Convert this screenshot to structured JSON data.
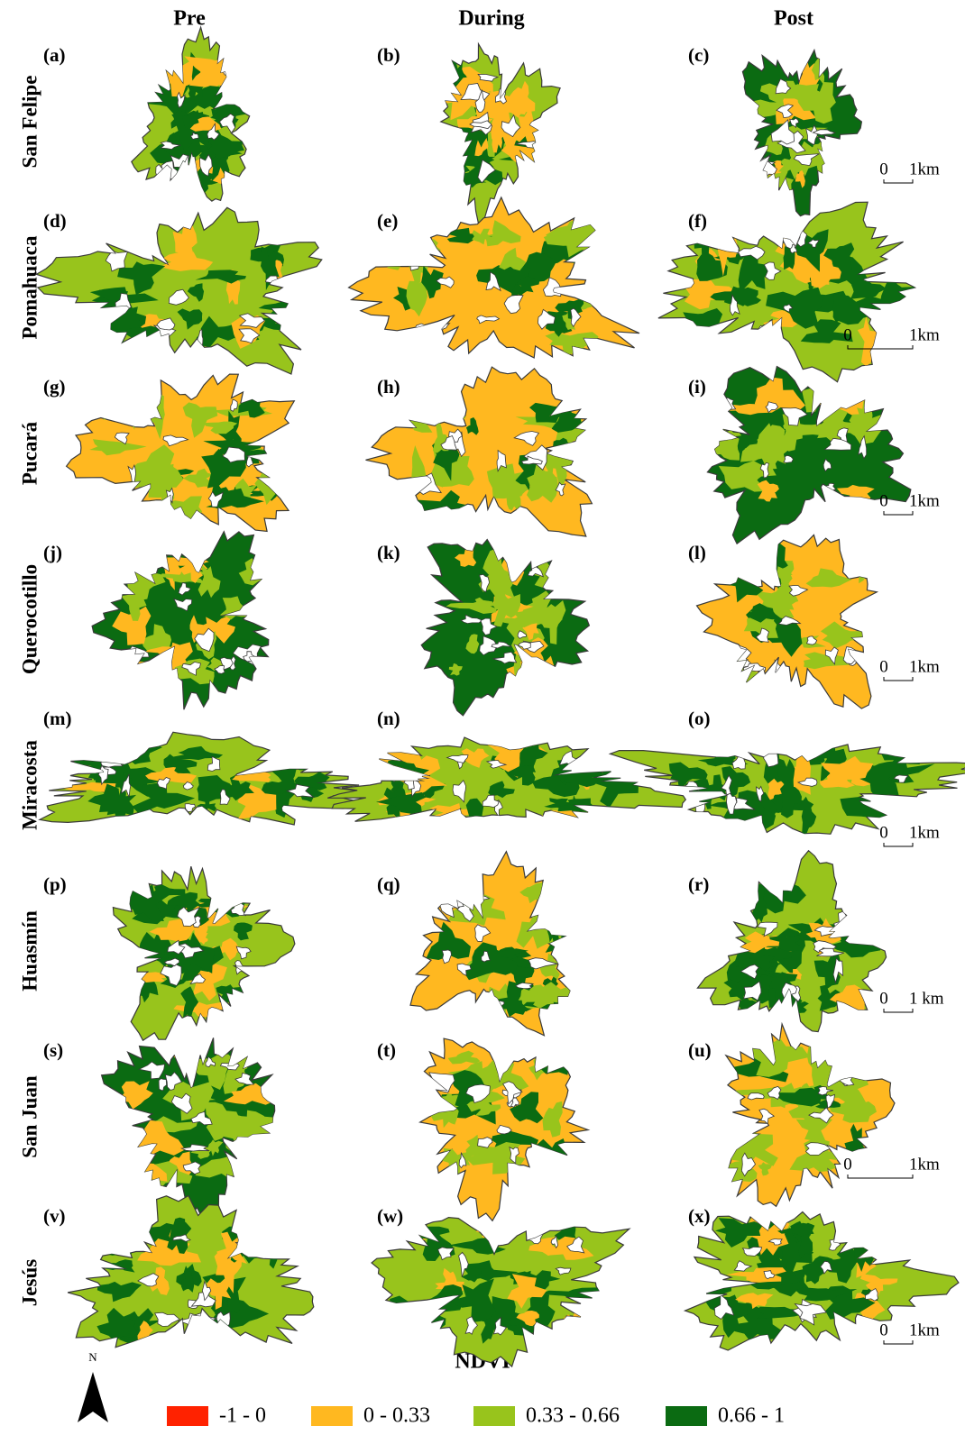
{
  "columns": [
    "Pre",
    "During",
    "Post"
  ],
  "rows": [
    {
      "name": "San Felipe",
      "panels": [
        "(a)",
        "(b)",
        "(c)"
      ],
      "scale": {
        "zero": "0",
        "unit": "1km"
      }
    },
    {
      "name": "Pomahuaca",
      "panels": [
        "(d)",
        "(e)",
        "(f)"
      ],
      "scale": {
        "zero": "0",
        "unit": "1km"
      }
    },
    {
      "name": "Pucará",
      "panels": [
        "(g)",
        "(h)",
        "(i)"
      ],
      "scale": {
        "zero": "0",
        "unit": "1km"
      }
    },
    {
      "name": "Querocotillo",
      "panels": [
        "(j)",
        "(k)",
        "(l)"
      ],
      "scale": {
        "zero": "0",
        "unit": "1km"
      }
    },
    {
      "name": "Miracosta",
      "panels": [
        "(m)",
        "(n)",
        "(o)"
      ],
      "scale": {
        "zero": "0",
        "unit": "1km"
      }
    },
    {
      "name": "Huasmín",
      "panels": [
        "(p)",
        "(q)",
        "(r)"
      ],
      "scale": {
        "zero": "0",
        "unit": "1 km"
      }
    },
    {
      "name": "San Juan",
      "panels": [
        "(s)",
        "(t)",
        "(u)"
      ],
      "scale": {
        "zero": "0",
        "unit": "1km"
      }
    },
    {
      "name": "Jesús",
      "panels": [
        "(v)",
        "(w)",
        "(x)"
      ],
      "scale": {
        "zero": "0",
        "unit": "1km"
      }
    }
  ],
  "north": "N",
  "legend": {
    "title": "NDVI",
    "items": [
      {
        "label": "-1 - 0",
        "color": "#ff2200"
      },
      {
        "label": "0 - 0.33",
        "color": "#ffb820"
      },
      {
        "label": "0.33 - 0.66",
        "color": "#98c41c"
      },
      {
        "label": "0.66 - 1",
        "color": "#0b6b12"
      }
    ]
  }
}
